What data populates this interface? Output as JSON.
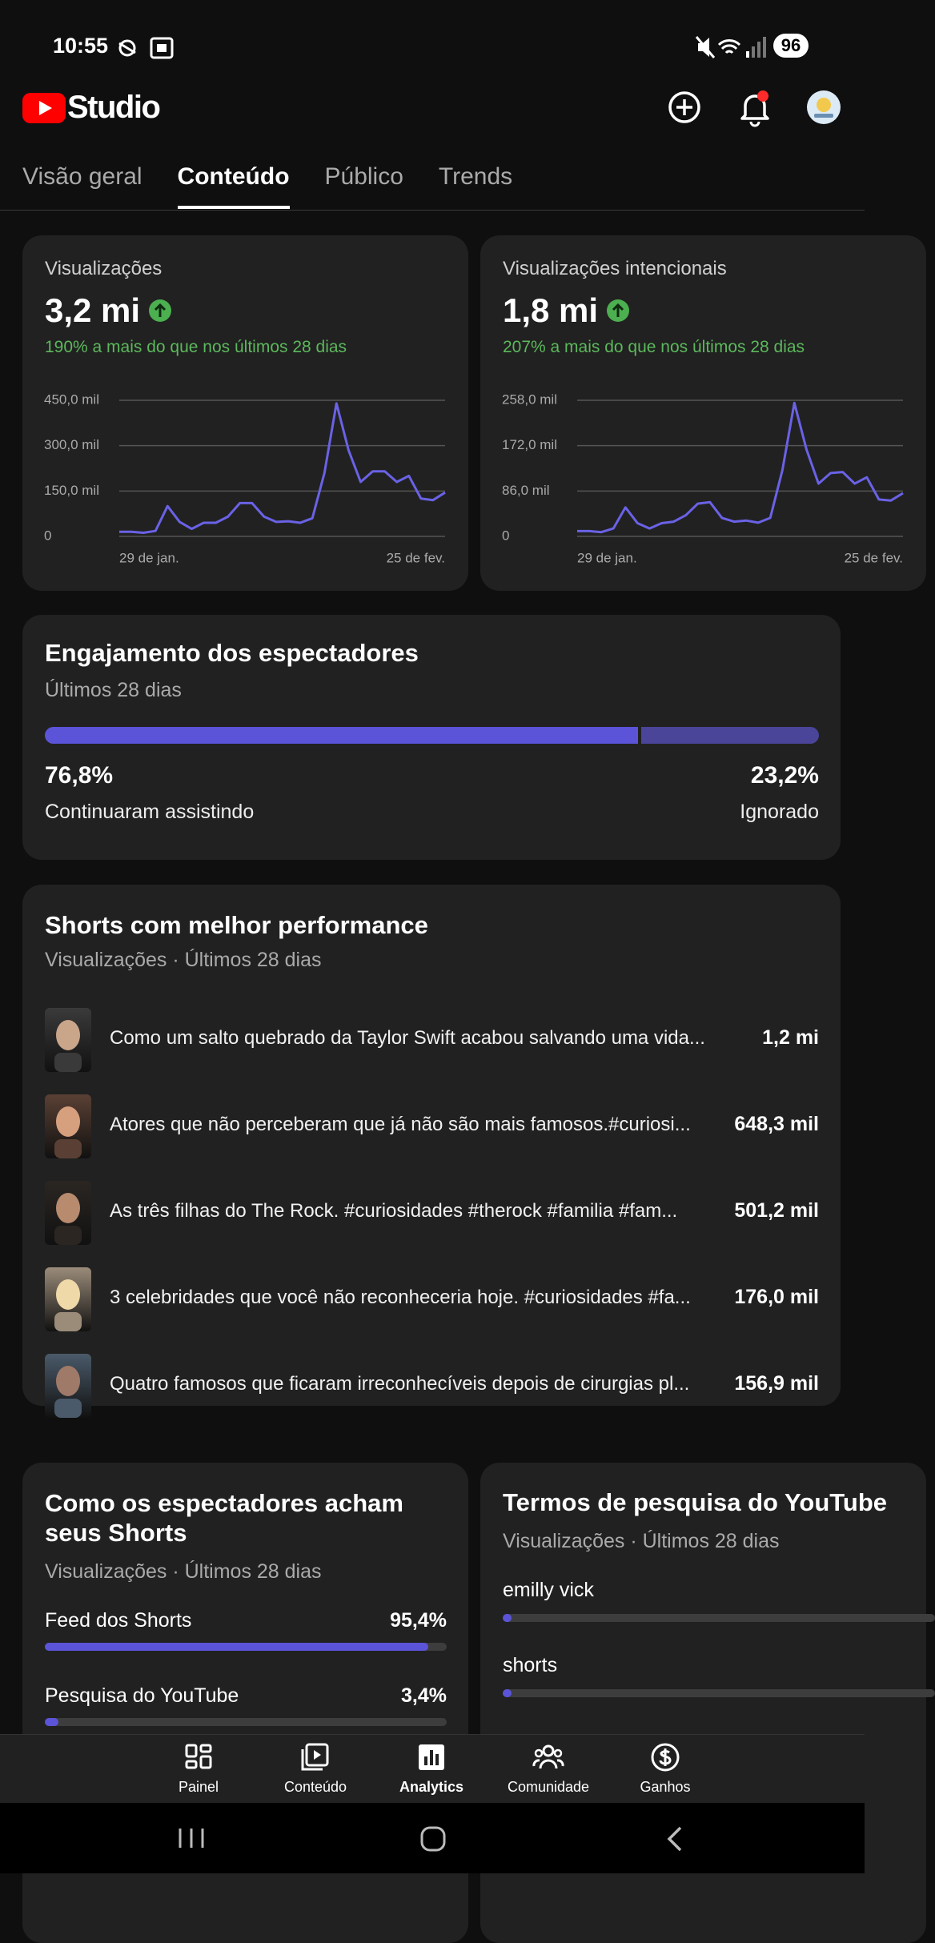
{
  "status_bar": {
    "time": "10:55",
    "battery": "96"
  },
  "header": {
    "app_name": "Studio"
  },
  "tabs": {
    "items": [
      "Visão geral",
      "Conteúdo",
      "Público",
      "Trends"
    ],
    "active": 1
  },
  "chart_data": [
    {
      "type": "line",
      "title": "Visualizações",
      "total": "3,2 mi",
      "change": "190% a mais do que nos últimos 28 dias",
      "categories": [
        "29 de jan.",
        null,
        null,
        null,
        null,
        null,
        null,
        null,
        null,
        null,
        null,
        null,
        null,
        null,
        null,
        null,
        null,
        null,
        null,
        null,
        null,
        null,
        null,
        null,
        null,
        null,
        null,
        "25 de fev."
      ],
      "values": [
        15,
        15,
        12,
        18,
        100,
        48,
        25,
        45,
        45,
        65,
        110,
        110,
        65,
        48,
        50,
        45,
        60,
        210,
        440,
        285,
        180,
        215,
        215,
        180,
        200,
        125,
        120,
        145
      ],
      "color": "#6a62e6",
      "ylim": [
        0,
        450
      ],
      "yticks": [
        0,
        {
          "value": 150,
          "label": "150,0 mil"
        },
        {
          "value": 300,
          "label": "300,0 mil"
        },
        {
          "value": 450,
          "label": "450,0 mil"
        }
      ],
      "grid": true
    },
    {
      "type": "line",
      "title": "Visualizações intencionais",
      "total": "1,8 mi",
      "change": "207% a mais do que nos últimos 28 dias",
      "categories": [
        "29 de jan.",
        null,
        null,
        null,
        null,
        null,
        null,
        null,
        null,
        null,
        null,
        null,
        null,
        null,
        null,
        null,
        null,
        null,
        null,
        null,
        null,
        null,
        null,
        null,
        null,
        null,
        null,
        "25 de fev."
      ],
      "values": [
        10,
        10,
        8,
        15,
        55,
        25,
        15,
        25,
        28,
        40,
        62,
        65,
        35,
        28,
        30,
        26,
        35,
        125,
        253,
        165,
        100,
        120,
        122,
        100,
        112,
        70,
        68,
        82
      ],
      "color": "#6a62e6",
      "ylim": [
        0,
        258
      ],
      "yticks": [
        0,
        {
          "value": 86,
          "label": "86,0 mil"
        },
        {
          "value": 172,
          "label": "172,0 mil"
        },
        {
          "value": 258,
          "label": "258,0 mil"
        }
      ],
      "grid": true
    }
  ],
  "engagement": {
    "title": "Engajamento dos espectadores",
    "subtitle": "Últimos 28 dias",
    "xlim": [
      0,
      100
    ],
    "segments": [
      {
        "label": "Continuaram assistindo",
        "value": 76.8,
        "value_label": "76,8%",
        "color": "#5b54d8"
      },
      {
        "label": "Ignorado",
        "value": 23.2,
        "value_label": "23,2%",
        "color": "#4a4599"
      }
    ]
  },
  "top_shorts": {
    "title": "Shorts com melhor performance",
    "subtitle": "Visualizações · Últimos 28 dias",
    "items": [
      {
        "title": "Como um salto quebrado da Taylor Swift acabou salvando uma vida...",
        "views": "1,2 mi"
      },
      {
        "title": "Atores que não perceberam que já não são mais famosos.#curiosi...",
        "views": "648,3 mil"
      },
      {
        "title": "As três filhas do The Rock. #curiosidades #therock #familia  #fam...",
        "views": "501,2 mil"
      },
      {
        "title": "3 celebridades que você não reconheceria hoje. #curiosidades #fa...",
        "views": "176,0 mil"
      },
      {
        "title": "Quatro famosos que ficaram irreconhecíveis depois de cirurgias pl...",
        "views": "156,9 mil"
      }
    ]
  },
  "discovery": {
    "title": "Como os espectadores acham seus Shorts",
    "subtitle": "Visualizações · Últimos 28 dias",
    "xlim": [
      0,
      100
    ],
    "color": "#5b54d8",
    "sources": [
      {
        "name": "Feed dos Shorts",
        "value": 95.4,
        "value_label": "95,4%"
      },
      {
        "name": "Pesquisa do YouTube",
        "value": 3.4,
        "value_label": "3,4%"
      }
    ]
  },
  "search_terms": {
    "title": "Termos de pesquisa do YouTube",
    "subtitle": "Visualizações · Últimos 28 dias",
    "terms": [
      "emilly vick",
      "shorts"
    ]
  },
  "bottom_nav": {
    "items": [
      "Painel",
      "Conteúdo",
      "Analytics",
      "Comunidade",
      "Ganhos"
    ],
    "active": 2
  }
}
